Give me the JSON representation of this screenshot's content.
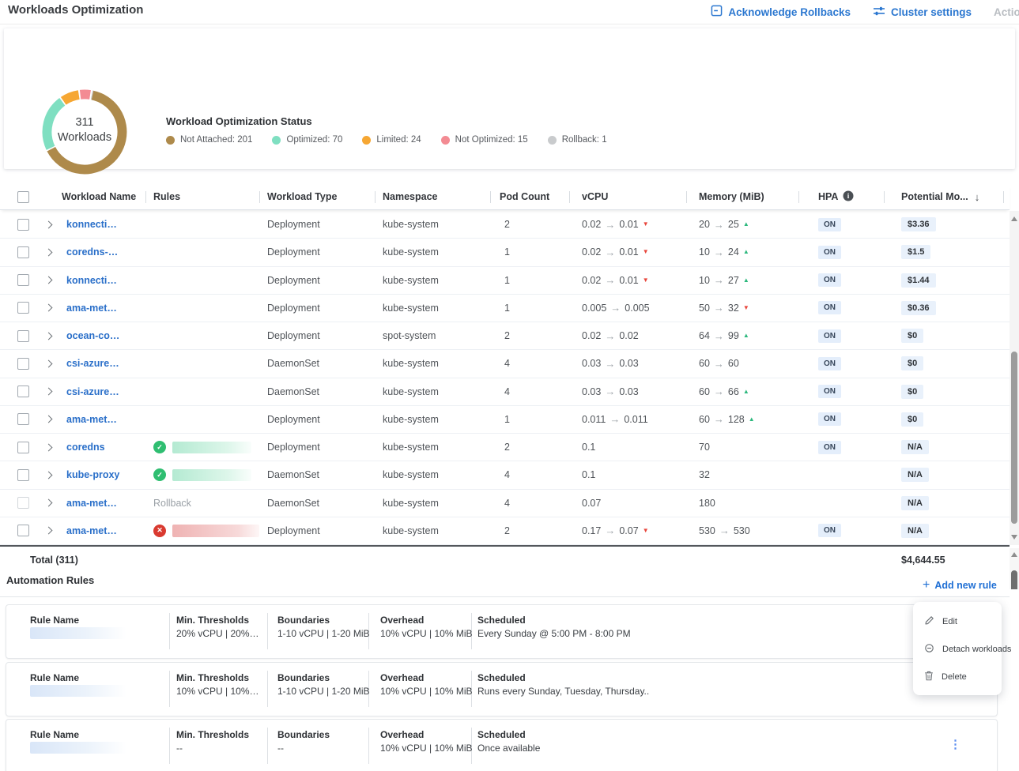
{
  "header": {
    "title": "Workloads Optimization",
    "acknowledge_rollbacks": "Acknowledge Rollbacks",
    "cluster_settings": "Cluster settings",
    "actions_disabled": "Action"
  },
  "summary": {
    "total_count": "311",
    "total_label": "Workloads",
    "status_title": "Workload Optimization Status",
    "segments": [
      {
        "label": "Not Attached",
        "value": 201,
        "color": "#ae8a4b"
      },
      {
        "label": "Optimized",
        "value": 70,
        "color": "#7fdfc1"
      },
      {
        "label": "Limited",
        "value": 24,
        "color": "#f6a733"
      },
      {
        "label": "Not Optimized",
        "value": 15,
        "color": "#f38b93"
      },
      {
        "label": "Rollback",
        "value": 1,
        "color": "#c9cbcd"
      }
    ]
  },
  "table": {
    "columns": {
      "name": "Workload Name",
      "rules": "Rules",
      "type": "Workload Type",
      "namespace": "Namespace",
      "pods": "Pod Count",
      "cpu": "vCPU",
      "memory": "Memory (MiB)",
      "hpa": "HPA",
      "potential": "Potential Mo..."
    },
    "hpa_on": "ON",
    "rows": [
      {
        "name": "konnecti…",
        "rule": {
          "kind": "none"
        },
        "type": "Deployment",
        "namespace": "kube-system",
        "pods": "2",
        "cpu": {
          "from": "0.02",
          "to": "0.01",
          "dir": "down"
        },
        "memory": {
          "from": "20",
          "to": "25",
          "dir": "up"
        },
        "hpa": "ON",
        "potential": "$3.36"
      },
      {
        "name": "coredns-…",
        "rule": {
          "kind": "none"
        },
        "type": "Deployment",
        "namespace": "kube-system",
        "pods": "1",
        "cpu": {
          "from": "0.02",
          "to": "0.01",
          "dir": "down"
        },
        "memory": {
          "from": "10",
          "to": "24",
          "dir": "up"
        },
        "hpa": "ON",
        "potential": "$1.5"
      },
      {
        "name": "konnecti…",
        "rule": {
          "kind": "none"
        },
        "type": "Deployment",
        "namespace": "kube-system",
        "pods": "1",
        "cpu": {
          "from": "0.02",
          "to": "0.01",
          "dir": "down"
        },
        "memory": {
          "from": "10",
          "to": "27",
          "dir": "up"
        },
        "hpa": "ON",
        "potential": "$1.44"
      },
      {
        "name": "ama-met…",
        "rule": {
          "kind": "none"
        },
        "type": "Deployment",
        "namespace": "kube-system",
        "pods": "1",
        "cpu": {
          "from": "0.005",
          "to": "0.005"
        },
        "memory": {
          "from": "50",
          "to": "32",
          "dir": "down"
        },
        "hpa": "ON",
        "potential": "$0.36"
      },
      {
        "name": "ocean-co…",
        "rule": {
          "kind": "none"
        },
        "type": "Deployment",
        "namespace": "spot-system",
        "pods": "2",
        "cpu": {
          "from": "0.02",
          "to": "0.02"
        },
        "memory": {
          "from": "64",
          "to": "99",
          "dir": "up"
        },
        "hpa": "ON",
        "potential": "$0"
      },
      {
        "name": "csi-azure…",
        "rule": {
          "kind": "none"
        },
        "type": "DaemonSet",
        "namespace": "kube-system",
        "pods": "4",
        "cpu": {
          "from": "0.03",
          "to": "0.03"
        },
        "memory": {
          "from": "60",
          "to": "60"
        },
        "hpa": "ON",
        "potential": "$0"
      },
      {
        "name": "csi-azure…",
        "rule": {
          "kind": "none"
        },
        "type": "DaemonSet",
        "namespace": "kube-system",
        "pods": "4",
        "cpu": {
          "from": "0.03",
          "to": "0.03"
        },
        "memory": {
          "from": "60",
          "to": "66",
          "dir": "up"
        },
        "hpa": "ON",
        "potential": "$0"
      },
      {
        "name": "ama-met…",
        "rule": {
          "kind": "none"
        },
        "type": "Deployment",
        "namespace": "kube-system",
        "pods": "1",
        "cpu": {
          "from": "0.011",
          "to": "0.011"
        },
        "memory": {
          "from": "60",
          "to": "128",
          "dir": "up"
        },
        "hpa": "ON",
        "potential": "$0"
      },
      {
        "name": "coredns",
        "rule": {
          "kind": "ok"
        },
        "type": "Deployment",
        "namespace": "kube-system",
        "pods": "2",
        "cpu": {
          "from": "0.1"
        },
        "memory": {
          "from": "70"
        },
        "hpa": "ON",
        "potential": "N/A"
      },
      {
        "name": "kube-proxy",
        "rule": {
          "kind": "ok"
        },
        "type": "DaemonSet",
        "namespace": "kube-system",
        "pods": "4",
        "cpu": {
          "from": "0.1"
        },
        "memory": {
          "from": "32"
        },
        "hpa": "",
        "potential": "N/A"
      },
      {
        "name": "ama-met…",
        "rule": {
          "kind": "rollback",
          "text": "Rollback"
        },
        "type": "DaemonSet",
        "namespace": "kube-system",
        "pods": "4",
        "cpu": {
          "from": "0.07"
        },
        "memory": {
          "from": "180"
        },
        "hpa": "",
        "potential": "N/A",
        "muted": true
      },
      {
        "name": "ama-met…",
        "rule": {
          "kind": "error"
        },
        "type": "Deployment",
        "namespace": "kube-system",
        "pods": "2",
        "cpu": {
          "from": "0.17",
          "to": "0.07",
          "dir": "down"
        },
        "memory": {
          "from": "530",
          "to": "530"
        },
        "hpa": "ON",
        "potential": "N/A"
      }
    ],
    "total_label": "Total (311)",
    "total_value": "$4,644.55"
  },
  "automation": {
    "title": "Automation Rules",
    "add_rule_label": "Add new rule",
    "card_labels": {
      "name": "Rule Name",
      "thresholds": "Min. Thresholds",
      "boundaries": "Boundaries",
      "overhead": "Overhead",
      "scheduled": "Scheduled"
    },
    "rules": [
      {
        "thresholds": "20% vCPU | 20%…",
        "boundaries": "1-10 vCPU | 1-20 MiB",
        "overhead": "10% vCPU | 10% MiB",
        "scheduled": "Every Sunday @ 5:00 PM - 8:00 PM"
      },
      {
        "thresholds": "10% vCPU | 10%…",
        "boundaries": "1-10 vCPU | 1-20 MiB",
        "overhead": "10% vCPU | 10% MiB",
        "scheduled": "Runs every Sunday, Tuesday, Thursday.."
      },
      {
        "thresholds": "--",
        "boundaries": "--",
        "overhead": "10% vCPU | 10% MiB",
        "scheduled": "Once available"
      }
    ]
  },
  "context_menu": {
    "items": [
      {
        "label": "Edit",
        "icon": "edit-icon"
      },
      {
        "label": "Detach workloads",
        "icon": "detach-icon"
      },
      {
        "label": "Delete",
        "icon": "delete-icon"
      }
    ]
  }
}
